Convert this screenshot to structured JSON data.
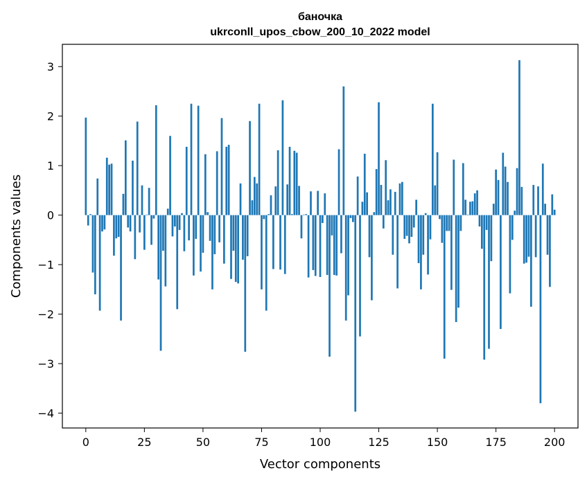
{
  "chart_data": {
    "type": "bar",
    "title_line1": "баночка",
    "title_line2": "ukrconll_upos_cbow_200_10_2022 model",
    "xlabel": "Vector components",
    "ylabel": "Components values",
    "xlim": [
      -10,
      210
    ],
    "ylim": [
      -4.3,
      3.45
    ],
    "x_ticks": [
      0,
      25,
      50,
      75,
      100,
      125,
      150,
      175,
      200
    ],
    "y_ticks": [
      -4,
      -3,
      -2,
      -1,
      0,
      1,
      2,
      3
    ],
    "bar_color": "#1f77b4",
    "grid": false,
    "values": [
      1.97,
      -0.21,
      0.02,
      -1.16,
      -1.6,
      0.74,
      -1.93,
      -0.33,
      -0.29,
      1.16,
      1.02,
      1.04,
      -0.82,
      -0.47,
      -0.44,
      -2.13,
      0.43,
      1.51,
      -0.25,
      -0.33,
      1.1,
      -0.89,
      1.89,
      -0.35,
      0.6,
      -0.7,
      0.01,
      0.55,
      -0.6,
      -0.07,
      2.22,
      -1.3,
      -2.74,
      -0.72,
      -1.44,
      0.13,
      1.6,
      -0.43,
      -0.23,
      -1.9,
      -0.3,
      0.04,
      -0.73,
      1.38,
      -0.51,
      2.25,
      -1.22,
      -0.48,
      2.21,
      -1.14,
      -0.76,
      1.23,
      0.06,
      -0.52,
      -1.5,
      -0.79,
      1.29,
      -0.55,
      1.96,
      -0.98,
      1.38,
      1.42,
      -1.29,
      -0.72,
      -1.35,
      -1.38,
      0.64,
      -0.9,
      -2.76,
      -0.83,
      1.9,
      0.3,
      0.77,
      0.64,
      2.25,
      -1.5,
      -0.08,
      -1.93,
      0.02,
      0.4,
      -1.09,
      0.58,
      1.31,
      -1.1,
      2.32,
      -1.19,
      0.62,
      1.38,
      0.02,
      1.3,
      1.26,
      0.59,
      -0.47,
      0.01,
      0.02,
      -1.26,
      0.48,
      -1.11,
      -1.23,
      0.49,
      -1.25,
      -0.16,
      0.44,
      -1.21,
      -2.86,
      -0.41,
      -1.21,
      -1.22,
      1.33,
      -0.77,
      2.6,
      -2.13,
      -1.62,
      -0.06,
      -0.14,
      -3.97,
      0.78,
      -2.45,
      0.27,
      1.24,
      0.46,
      -0.85,
      -1.72,
      0.06,
      0.93,
      2.28,
      0.61,
      -0.27,
      1.11,
      0.3,
      0.52,
      -0.8,
      0.47,
      -1.48,
      0.64,
      0.67,
      -0.48,
      -0.42,
      -0.57,
      -0.44,
      -0.25,
      0.31,
      -0.97,
      -1.5,
      -0.8,
      0.04,
      -1.2,
      -0.49,
      2.25,
      0.6,
      1.27,
      -0.08,
      -0.56,
      -2.9,
      -0.32,
      -0.32,
      -1.51,
      1.12,
      -2.16,
      -1.87,
      -0.32,
      1.05,
      0.31,
      0.01,
      0.27,
      0.28,
      0.44,
      0.5,
      -0.23,
      -0.68,
      -2.92,
      -0.3,
      -2.7,
      -0.93,
      0.23,
      0.92,
      0.71,
      -2.3,
      1.26,
      0.98,
      0.67,
      -1.58,
      -0.5,
      0.09,
      0.95,
      3.13,
      0.57,
      -0.98,
      -0.96,
      -0.84,
      -1.85,
      0.61,
      -0.85,
      0.58,
      -3.8,
      1.04,
      0.23,
      -0.8,
      -1.45,
      0.42,
      0.11
    ]
  }
}
